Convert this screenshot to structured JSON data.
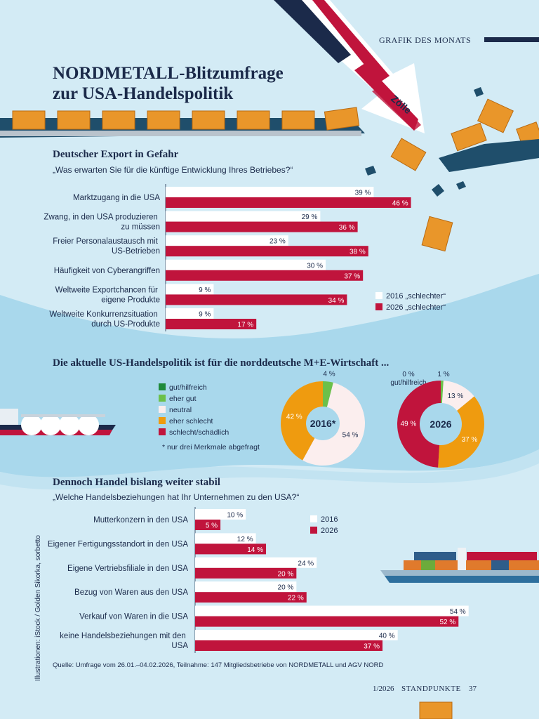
{
  "header": {
    "kicker": "GRAFIK DES MONATS",
    "title": "NORDMETALL-Blitzumfrage zur USA-Handelspolitik",
    "arrow_label": "Zölle"
  },
  "chart_data": [
    {
      "type": "bar",
      "orientation": "horizontal",
      "title": "Deutscher Export in Gefahr",
      "subtitle": "„Was erwarten Sie für die künftige Entwicklung Ihres Betriebes?“",
      "categories": [
        "Marktzugang in die USA",
        "Zwang, in den USA produzieren zu müssen",
        "Freier Personalaustausch mit US-Betrieben",
        "Häufigkeit von Cyberangriffen",
        "Weltweite Exportchancen für eigene Produkte",
        "Weltweite Konkurrenzsituation durch US-Produkte"
      ],
      "series": [
        {
          "name": "2016 „schlechter“",
          "color": "#ffffff",
          "values": [
            39,
            29,
            23,
            30,
            9,
            9
          ],
          "value_labels": [
            "39 %",
            "29 %",
            "23 %",
            "30 %",
            "9 %",
            "9 %"
          ]
        },
        {
          "name": "2026 „schlechter“",
          "color": "#c0143c",
          "values": [
            46,
            36,
            38,
            37,
            34,
            17
          ],
          "value_labels": [
            "46 %",
            "36 %",
            "38 %",
            "37 %",
            "34 %",
            "17 %"
          ]
        }
      ],
      "xlim": [
        0,
        50
      ]
    },
    {
      "type": "pie",
      "donut": true,
      "title": "Die aktuelle US-Handelspolitik ist für die norddeutsche M+E-Wirtschaft ...",
      "categories": [
        "gut/hilfreich",
        "eher gut",
        "neutral",
        "eher schlecht",
        "schlecht/schädlich"
      ],
      "colors": [
        "#1e8a3a",
        "#6cc04a",
        "#fbeeee",
        "#ef9b0f",
        "#c0143c"
      ],
      "series": [
        {
          "name": "2016*",
          "values": [
            null,
            4,
            54,
            42,
            null
          ],
          "value_labels": [
            null,
            "4 %",
            "54 %",
            "42 %",
            null
          ]
        },
        {
          "name": "2026",
          "values": [
            0,
            1,
            13,
            37,
            49
          ],
          "value_labels": [
            "0 %",
            "1 %",
            "13 %",
            "37 %",
            "49 %"
          ]
        }
      ],
      "note": "* nur drei Merkmale abgefragt"
    },
    {
      "type": "bar",
      "orientation": "horizontal",
      "title": "Dennoch Handel bislang weiter stabil",
      "subtitle": "„Welche Handelsbeziehungen hat Ihr Unternehmen zu den USA?“",
      "categories": [
        "Mutterkonzern in den USA",
        "Eigener Fertigungsstandort in den USA",
        "Eigene Vertriebsfiliale in den USA",
        "Bezug von Waren aus den USA",
        "Verkauf von Waren in die USA",
        "keine Handelsbeziehungen mit den USA"
      ],
      "series": [
        {
          "name": "2016",
          "color": "#ffffff",
          "values": [
            10,
            12,
            24,
            20,
            54,
            40
          ],
          "value_labels": [
            "10 %",
            "12 %",
            "24 %",
            "20 %",
            "54 %",
            "40 %"
          ]
        },
        {
          "name": "2026",
          "color": "#c0143c",
          "values": [
            5,
            14,
            20,
            22,
            52,
            37
          ],
          "value_labels": [
            "5 %",
            "14 %",
            "20 %",
            "22 %",
            "52 %",
            "37 %"
          ]
        }
      ],
      "xlim": [
        0,
        60
      ]
    }
  ],
  "source": "Quelle: Umfrage vom 26.01.–04.02.2026, Teilnahme: 147 Mitgliedsbetriebe von NORDMETALL und AGV NORD",
  "credit": "Illustrationen: iStock / Golden Sikorka, sorbetto",
  "footer": {
    "issue": "1/2026",
    "magazine": "STANDPUNKTE",
    "page": "37"
  }
}
